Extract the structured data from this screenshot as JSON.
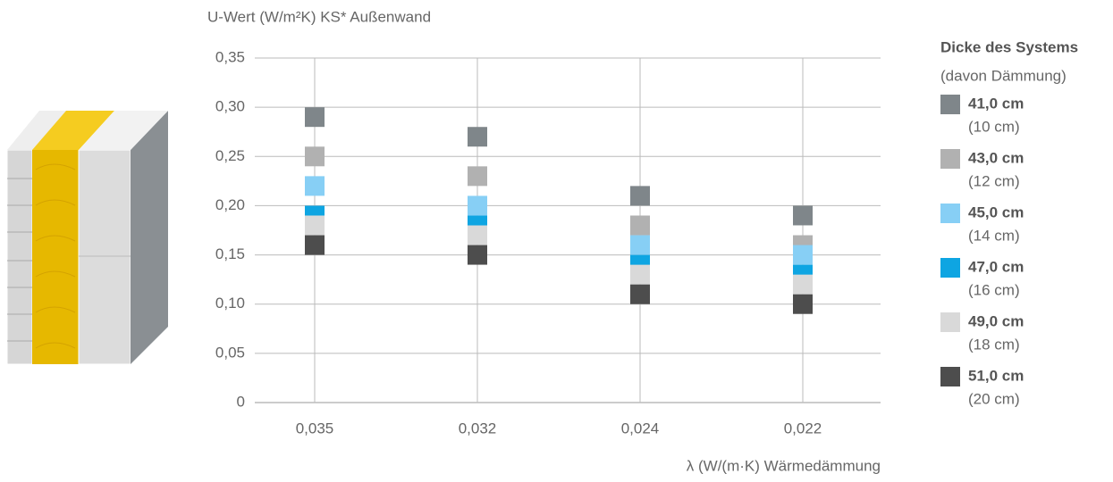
{
  "chart_data": {
    "type": "scatter",
    "title": "U-Wert (W/m²K) KS* Außenwand",
    "x_label": "λ (W/(m·K) Wärmedämmung",
    "legend_title": "Dicke des Systems",
    "legend_subtitle": "(davon Dämmung)",
    "categories": [
      "0,035",
      "0,032",
      "0,024",
      "0,022"
    ],
    "series": [
      {
        "name": "41,0 cm",
        "sublabel": "(10 cm)",
        "color": "#7f868a",
        "values": [
          0.29,
          0.27,
          0.21,
          0.19
        ]
      },
      {
        "name": "43,0 cm",
        "sublabel": "(12 cm)",
        "color": "#b1b1b1",
        "values": [
          0.25,
          0.23,
          0.18,
          0.16
        ]
      },
      {
        "name": "45,0 cm",
        "sublabel": "(14 cm)",
        "color": "#87cff5",
        "values": [
          0.22,
          0.2,
          0.16,
          0.15
        ]
      },
      {
        "name": "47,0 cm",
        "sublabel": "(16 cm)",
        "color": "#0ea5e2",
        "values": [
          0.19,
          0.18,
          0.14,
          0.13
        ]
      },
      {
        "name": "49,0 cm",
        "sublabel": "(18 cm)",
        "color": "#d9d9d9",
        "values": [
          0.18,
          0.17,
          0.13,
          0.12
        ]
      },
      {
        "name": "51,0 cm",
        "sublabel": "(20 cm)",
        "color": "#4d4d4d",
        "values": [
          0.16,
          0.15,
          0.11,
          0.1
        ]
      }
    ],
    "ylim": [
      0,
      0.35
    ],
    "yticks": [
      0,
      {
        "value": 0.05,
        "label": "0,05"
      },
      {
        "value": 0.1,
        "label": "0,10"
      },
      {
        "value": 0.15,
        "label": "0,15"
      },
      {
        "value": 0.2,
        "label": "0,20"
      },
      {
        "value": 0.25,
        "label": "0,25"
      },
      {
        "value": 0.3,
        "label": "0,30"
      },
      {
        "value": 0.35,
        "label": "0,35"
      }
    ],
    "grid": true
  }
}
